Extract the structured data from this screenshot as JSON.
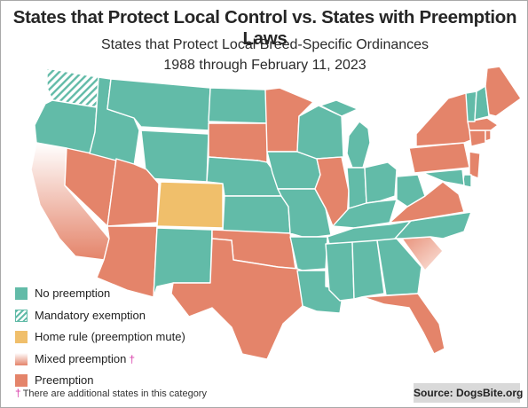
{
  "title": "States that Protect Local Control vs. States with Preemption Laws",
  "subtitle_line1": "States that Protect Local Breed-Specific Ordinances",
  "subtitle_line2": "1988 through February 11, 2023",
  "colors": {
    "no_preemption": "#62bba8",
    "mandatory_exemption": "#62bba8",
    "home_rule": "#f0bf6b",
    "mixed_preemption": "#f2b6a2",
    "preemption": "#e4846a"
  },
  "legend": [
    {
      "key": "no_preemption",
      "label": "No preemption",
      "pattern": "solid"
    },
    {
      "key": "mandatory_exemption",
      "label": "Mandatory exemption",
      "pattern": "hatched"
    },
    {
      "key": "home_rule",
      "label": "Home rule (preemption mute)",
      "pattern": "solid"
    },
    {
      "key": "mixed_preemption",
      "label": "Mixed preemption",
      "pattern": "gradient",
      "marker": "†"
    },
    {
      "key": "preemption",
      "label": "Preemption",
      "pattern": "solid"
    }
  ],
  "footnote": {
    "marker": "†",
    "text": "There are additional states in this category"
  },
  "source": "Source: DogsBite.org",
  "state_categories": {
    "Washington": "mandatory_exemption",
    "Oregon": "no_preemption",
    "California": "mixed_preemption",
    "Nevada": "preemption",
    "Idaho": "no_preemption",
    "Montana": "no_preemption",
    "Wyoming": "no_preemption",
    "Utah": "preemption",
    "Arizona": "preemption",
    "Colorado": "home_rule",
    "New Mexico": "no_preemption",
    "North Dakota": "no_preemption",
    "South Dakota": "preemption",
    "Nebraska": "no_preemption",
    "Kansas": "no_preemption",
    "Oklahoma": "preemption",
    "Texas": "preemption",
    "Minnesota": "preemption",
    "Iowa": "no_preemption",
    "Missouri": "no_preemption",
    "Arkansas": "no_preemption",
    "Louisiana": "no_preemption",
    "Wisconsin": "no_preemption",
    "Illinois": "preemption",
    "Michigan": "no_preemption",
    "Indiana": "no_preemption",
    "Ohio": "no_preemption",
    "Kentucky": "no_preemption",
    "Tennessee": "no_preemption",
    "Mississippi": "no_preemption",
    "Alabama": "no_preemption",
    "Georgia": "no_preemption",
    "Florida": "preemption",
    "South Carolina": "mixed_preemption",
    "North Carolina": "no_preemption",
    "Virginia": "preemption",
    "West Virginia": "no_preemption",
    "Pennsylvania": "preemption",
    "New York": "preemption",
    "New Jersey": "preemption",
    "Delaware": "no_preemption",
    "Maryland": "no_preemption",
    "Connecticut": "preemption",
    "Rhode Island": "preemption",
    "Massachusetts": "preemption",
    "Vermont": "no_preemption",
    "New Hampshire": "no_preemption",
    "Maine": "preemption"
  }
}
